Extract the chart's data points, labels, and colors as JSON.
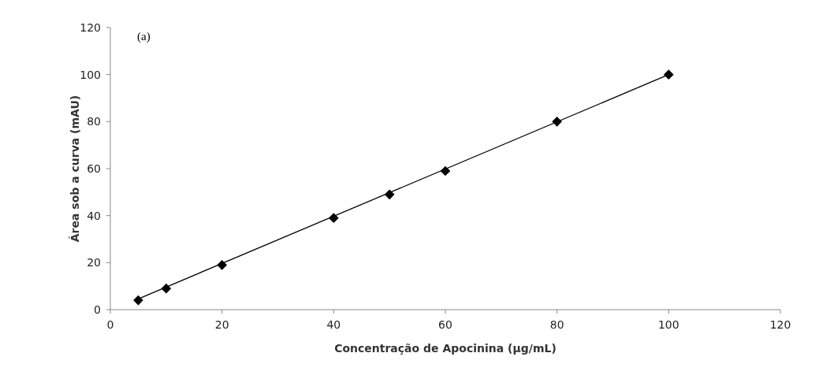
{
  "chart_data": {
    "type": "scatter",
    "xlabel": "Concentração de Apocinina (µg/mL)",
    "ylabel": "Área sob a curva (mAU)",
    "annotations": [
      "(a)"
    ],
    "xlim": [
      0,
      120
    ],
    "ylim": [
      0,
      120
    ],
    "xticks": [
      0,
      20,
      40,
      60,
      80,
      100,
      120
    ],
    "yticks": [
      0,
      20,
      40,
      60,
      80,
      100,
      120
    ],
    "grid": false,
    "series": [
      {
        "color": "#000000",
        "marker": "diamond",
        "x": [
          5,
          10,
          20,
          40,
          50,
          60,
          80,
          100
        ],
        "values": [
          4,
          9,
          19,
          39,
          49,
          59,
          80,
          100
        ]
      },
      {
        "type": "line",
        "color": "#000000",
        "marker": "none",
        "x": [
          5,
          100
        ],
        "values": [
          4.6,
          100
        ],
        "line_style": "solid"
      }
    ]
  }
}
